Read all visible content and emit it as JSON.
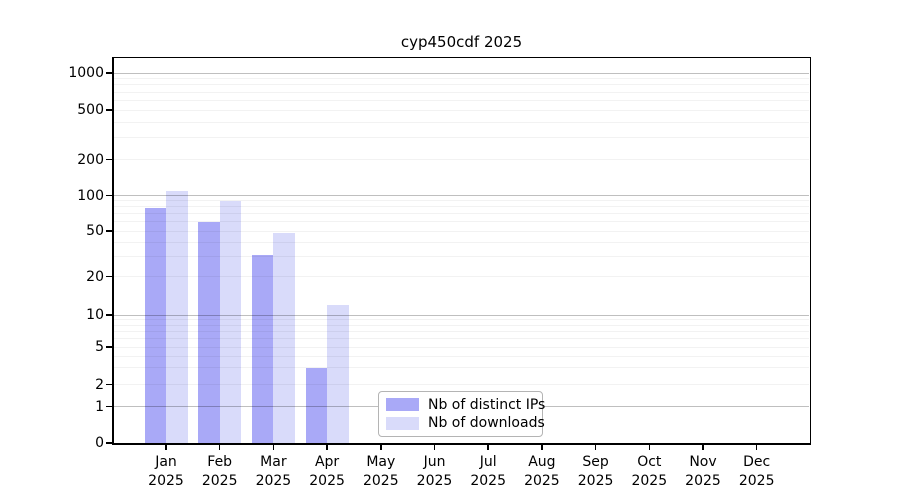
{
  "title": "cyp450cdf 2025",
  "chart_data": {
    "type": "bar",
    "title": "cyp450cdf 2025",
    "categories": [
      "Jan",
      "Feb",
      "Mar",
      "Apr",
      "May",
      "Jun",
      "Jul",
      "Aug",
      "Sep",
      "Oct",
      "Nov",
      "Dec"
    ],
    "category_year": "2025",
    "series": [
      {
        "name": "Nb of distinct IPs",
        "color": "#a9a9f7",
        "values": [
          78,
          60,
          31,
          3,
          null,
          null,
          null,
          null,
          null,
          null,
          null,
          null
        ]
      },
      {
        "name": "Nb of downloads",
        "color": "#d9dbfa",
        "values": [
          110,
          90,
          48,
          12,
          null,
          null,
          null,
          null,
          null,
          null,
          null,
          null
        ]
      }
    ],
    "yticks": [
      0,
      1,
      2,
      5,
      10,
      20,
      50,
      100,
      200,
      500,
      1000
    ],
    "ylim": [
      0,
      1200
    ],
    "yscale": "log-like (compressed toward 0)",
    "grid": "horizontal, minor light lines at 2-9 per decade, darker lines at 1/10/100/1000",
    "legend_position": "inside, lower center"
  },
  "legend": {
    "items": [
      {
        "label": "Nb of distinct IPs",
        "color": "#a9a9f7"
      },
      {
        "label": "Nb of downloads",
        "color": "#d9dbfa"
      }
    ]
  },
  "colors": {
    "background": "#ffffff",
    "bar_distinct_ips": "#a9a9f7",
    "bar_downloads": "#d9dbfa",
    "axis": "#000000",
    "major_gridline": "rgba(0,0,0,0.25)",
    "minor_gridline": "rgba(0,0,0,0.05)"
  }
}
